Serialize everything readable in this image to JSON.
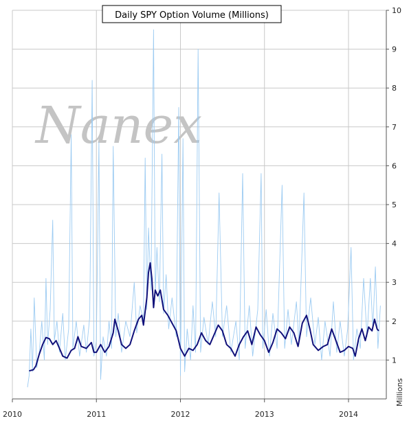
{
  "chart_data": {
    "type": "line",
    "title": "Daily SPY Option Volume (Millions)",
    "ylabel": "Millions",
    "watermark": "Nanex",
    "xlim": [
      2010.0,
      2014.45
    ],
    "ylim": [
      0,
      10
    ],
    "x_ticks": [
      2010,
      2011,
      2012,
      2013,
      2014
    ],
    "x_tick_labels": [
      "2010",
      "2011",
      "2012",
      "2013",
      "2014"
    ],
    "y_ticks": [
      1,
      2,
      3,
      4,
      5,
      6,
      7,
      8,
      9,
      10
    ],
    "y_tick_labels": [
      "1",
      "2",
      "3",
      "4",
      "5",
      "6",
      "7",
      "8",
      "9",
      "10"
    ],
    "grid": true,
    "colors": {
      "daily": "#9ccbf2",
      "average": "#10107a",
      "grid": "#c8c8c8",
      "axis": "#555555"
    },
    "series": [
      {
        "style": "daily",
        "points": [
          [
            2010.18,
            0.3
          ],
          [
            2010.2,
            0.6
          ],
          [
            2010.22,
            1.8
          ],
          [
            2010.24,
            0.7
          ],
          [
            2010.26,
            2.6
          ],
          [
            2010.29,
            0.8
          ],
          [
            2010.32,
            1.2
          ],
          [
            2010.35,
            2.0
          ],
          [
            2010.38,
            1.0
          ],
          [
            2010.4,
            3.1
          ],
          [
            2010.42,
            1.4
          ],
          [
            2010.45,
            2.3
          ],
          [
            2010.48,
            4.6
          ],
          [
            2010.5,
            1.5
          ],
          [
            2010.53,
            2.0
          ],
          [
            2010.56,
            1.2
          ],
          [
            2010.6,
            2.2
          ],
          [
            2010.63,
            1.0
          ],
          [
            2010.67,
            1.8
          ],
          [
            2010.7,
            6.8
          ],
          [
            2010.72,
            1.3
          ],
          [
            2010.76,
            2.0
          ],
          [
            2010.8,
            1.1
          ],
          [
            2010.85,
            1.9
          ],
          [
            2010.88,
            1.2
          ],
          [
            2010.92,
            2.1
          ],
          [
            2010.95,
            8.2
          ],
          [
            2010.97,
            1.1
          ],
          [
            2011.0,
            1.5
          ],
          [
            2011.03,
            6.6
          ],
          [
            2011.05,
            0.5
          ],
          [
            2011.08,
            1.6
          ],
          [
            2011.12,
            1.1
          ],
          [
            2011.15,
            2.0
          ],
          [
            2011.18,
            1.3
          ],
          [
            2011.2,
            6.5
          ],
          [
            2011.23,
            1.6
          ],
          [
            2011.26,
            2.2
          ],
          [
            2011.3,
            1.2
          ],
          [
            2011.35,
            2.0
          ],
          [
            2011.4,
            1.6
          ],
          [
            2011.45,
            3.0
          ],
          [
            2011.48,
            1.7
          ],
          [
            2011.52,
            2.4
          ],
          [
            2011.56,
            2.0
          ],
          [
            2011.58,
            6.2
          ],
          [
            2011.6,
            2.3
          ],
          [
            2011.62,
            4.4
          ],
          [
            2011.65,
            2.8
          ],
          [
            2011.68,
            9.5
          ],
          [
            2011.7,
            2.7
          ],
          [
            2011.72,
            3.9
          ],
          [
            2011.75,
            2.5
          ],
          [
            2011.78,
            6.3
          ],
          [
            2011.8,
            2.2
          ],
          [
            2011.83,
            3.2
          ],
          [
            2011.86,
            1.8
          ],
          [
            2011.9,
            2.6
          ],
          [
            2011.95,
            1.6
          ],
          [
            2011.98,
            7.5
          ],
          [
            2012.0,
            0.6
          ],
          [
            2012.03,
            6.7
          ],
          [
            2012.05,
            0.7
          ],
          [
            2012.08,
            1.8
          ],
          [
            2012.12,
            1.0
          ],
          [
            2012.15,
            2.4
          ],
          [
            2012.18,
            1.2
          ],
          [
            2012.21,
            9.0
          ],
          [
            2012.24,
            1.2
          ],
          [
            2012.28,
            2.1
          ],
          [
            2012.33,
            1.4
          ],
          [
            2012.38,
            2.5
          ],
          [
            2012.42,
            1.6
          ],
          [
            2012.46,
            5.3
          ],
          [
            2012.5,
            1.6
          ],
          [
            2012.55,
            2.4
          ],
          [
            2012.6,
            1.2
          ],
          [
            2012.66,
            2.0
          ],
          [
            2012.7,
            1.0
          ],
          [
            2012.74,
            5.8
          ],
          [
            2012.77,
            1.3
          ],
          [
            2012.82,
            2.4
          ],
          [
            2012.86,
            1.1
          ],
          [
            2012.92,
            2.3
          ],
          [
            2012.96,
            5.8
          ],
          [
            2012.98,
            1.3
          ],
          [
            2013.02,
            2.3
          ],
          [
            2013.06,
            1.1
          ],
          [
            2013.1,
            2.2
          ],
          [
            2013.15,
            1.3
          ],
          [
            2013.21,
            5.5
          ],
          [
            2013.24,
            1.3
          ],
          [
            2013.28,
            2.3
          ],
          [
            2013.32,
            1.4
          ],
          [
            2013.38,
            2.5
          ],
          [
            2013.41,
            1.4
          ],
          [
            2013.47,
            5.3
          ],
          [
            2013.5,
            1.6
          ],
          [
            2013.55,
            2.6
          ],
          [
            2013.6,
            1.4
          ],
          [
            2013.64,
            2.1
          ],
          [
            2013.68,
            1.0
          ],
          [
            2013.72,
            2.0
          ],
          [
            2013.78,
            1.1
          ],
          [
            2013.82,
            2.5
          ],
          [
            2013.86,
            1.2
          ],
          [
            2013.9,
            2.0
          ],
          [
            2013.95,
            1.1
          ],
          [
            2013.99,
            1.8
          ],
          [
            2014.03,
            3.9
          ],
          [
            2014.06,
            1.0
          ],
          [
            2014.1,
            1.8
          ],
          [
            2014.14,
            1.3
          ],
          [
            2014.18,
            3.1
          ],
          [
            2014.22,
            1.6
          ],
          [
            2014.26,
            3.1
          ],
          [
            2014.29,
            1.8
          ],
          [
            2014.32,
            3.4
          ],
          [
            2014.35,
            1.3
          ],
          [
            2014.38,
            2.4
          ]
        ]
      },
      {
        "style": "average",
        "points": [
          [
            2010.2,
            0.72
          ],
          [
            2010.25,
            0.75
          ],
          [
            2010.28,
            0.85
          ],
          [
            2010.32,
            1.15
          ],
          [
            2010.36,
            1.4
          ],
          [
            2010.4,
            1.58
          ],
          [
            2010.44,
            1.55
          ],
          [
            2010.48,
            1.4
          ],
          [
            2010.52,
            1.5
          ],
          [
            2010.56,
            1.3
          ],
          [
            2010.6,
            1.1
          ],
          [
            2010.65,
            1.05
          ],
          [
            2010.7,
            1.25
          ],
          [
            2010.74,
            1.3
          ],
          [
            2010.78,
            1.6
          ],
          [
            2010.82,
            1.35
          ],
          [
            2010.88,
            1.3
          ],
          [
            2010.94,
            1.45
          ],
          [
            2010.97,
            1.2
          ],
          [
            2011.0,
            1.2
          ],
          [
            2011.05,
            1.4
          ],
          [
            2011.1,
            1.2
          ],
          [
            2011.15,
            1.35
          ],
          [
            2011.2,
            1.7
          ],
          [
            2011.22,
            2.05
          ],
          [
            2011.26,
            1.75
          ],
          [
            2011.3,
            1.4
          ],
          [
            2011.35,
            1.3
          ],
          [
            2011.4,
            1.4
          ],
          [
            2011.45,
            1.75
          ],
          [
            2011.5,
            2.05
          ],
          [
            2011.54,
            2.15
          ],
          [
            2011.56,
            1.9
          ],
          [
            2011.6,
            2.6
          ],
          [
            2011.62,
            3.25
          ],
          [
            2011.64,
            3.5
          ],
          [
            2011.66,
            3.1
          ],
          [
            2011.68,
            2.35
          ],
          [
            2011.7,
            2.8
          ],
          [
            2011.73,
            2.65
          ],
          [
            2011.76,
            2.8
          ],
          [
            2011.8,
            2.3
          ],
          [
            2011.85,
            2.15
          ],
          [
            2011.9,
            1.95
          ],
          [
            2011.95,
            1.75
          ],
          [
            2012.0,
            1.3
          ],
          [
            2012.05,
            1.1
          ],
          [
            2012.1,
            1.3
          ],
          [
            2012.15,
            1.25
          ],
          [
            2012.2,
            1.4
          ],
          [
            2012.25,
            1.7
          ],
          [
            2012.3,
            1.5
          ],
          [
            2012.35,
            1.4
          ],
          [
            2012.4,
            1.65
          ],
          [
            2012.45,
            1.9
          ],
          [
            2012.5,
            1.75
          ],
          [
            2012.55,
            1.4
          ],
          [
            2012.6,
            1.3
          ],
          [
            2012.65,
            1.1
          ],
          [
            2012.7,
            1.4
          ],
          [
            2012.75,
            1.6
          ],
          [
            2012.8,
            1.75
          ],
          [
            2012.85,
            1.4
          ],
          [
            2012.9,
            1.85
          ],
          [
            2012.95,
            1.65
          ],
          [
            2013.0,
            1.5
          ],
          [
            2013.05,
            1.2
          ],
          [
            2013.1,
            1.45
          ],
          [
            2013.15,
            1.8
          ],
          [
            2013.2,
            1.7
          ],
          [
            2013.25,
            1.55
          ],
          [
            2013.3,
            1.85
          ],
          [
            2013.35,
            1.7
          ],
          [
            2013.4,
            1.35
          ],
          [
            2013.45,
            1.95
          ],
          [
            2013.5,
            2.15
          ],
          [
            2013.54,
            1.8
          ],
          [
            2013.58,
            1.4
          ],
          [
            2013.64,
            1.25
          ],
          [
            2013.7,
            1.35
          ],
          [
            2013.75,
            1.4
          ],
          [
            2013.8,
            1.8
          ],
          [
            2013.85,
            1.5
          ],
          [
            2013.9,
            1.2
          ],
          [
            2013.95,
            1.25
          ],
          [
            2014.0,
            1.35
          ],
          [
            2014.05,
            1.3
          ],
          [
            2014.08,
            1.1
          ],
          [
            2014.12,
            1.55
          ],
          [
            2014.16,
            1.8
          ],
          [
            2014.2,
            1.5
          ],
          [
            2014.24,
            1.85
          ],
          [
            2014.28,
            1.75
          ],
          [
            2014.31,
            2.05
          ],
          [
            2014.34,
            1.8
          ],
          [
            2014.36,
            1.75
          ]
        ]
      }
    ]
  }
}
